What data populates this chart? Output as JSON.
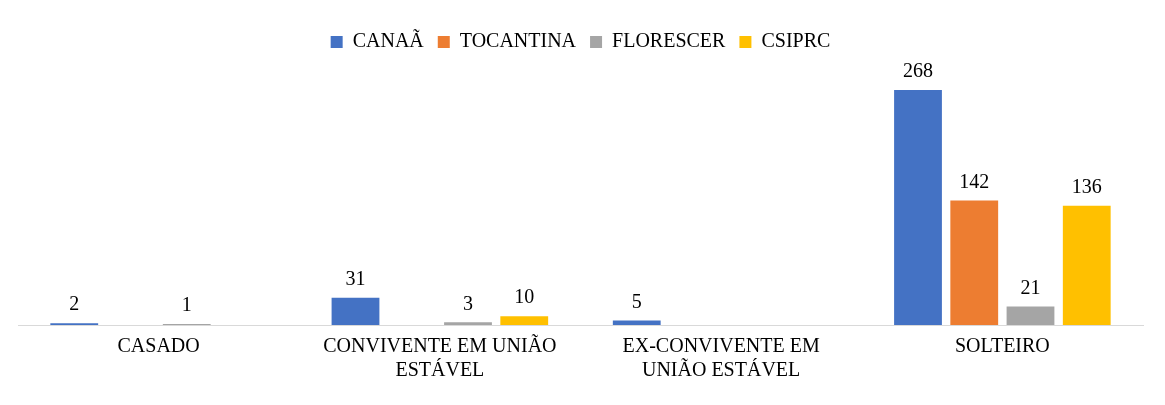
{
  "chart_data": {
    "type": "bar",
    "categories": [
      "CASADO",
      "CONVIVENTE EM UNIÃO ESTÁVEL",
      "EX-CONVIVENTE EM UNIÃO ESTÁVEL",
      "SOLTEIRO"
    ],
    "series": [
      {
        "name": "CANAÃ",
        "color": "#4472c4",
        "values": [
          2,
          31,
          5,
          268
        ]
      },
      {
        "name": "TOCANTINA",
        "color": "#ed7d31",
        "values": [
          null,
          null,
          null,
          142
        ]
      },
      {
        "name": "FLORESCER",
        "color": "#a5a5a5",
        "values": [
          1,
          3,
          null,
          21
        ]
      },
      {
        "name": "CSIPRC",
        "color": "#ffc000",
        "values": [
          null,
          10,
          null,
          136
        ]
      }
    ],
    "data_labels": true,
    "legend": "top",
    "grid": false
  }
}
